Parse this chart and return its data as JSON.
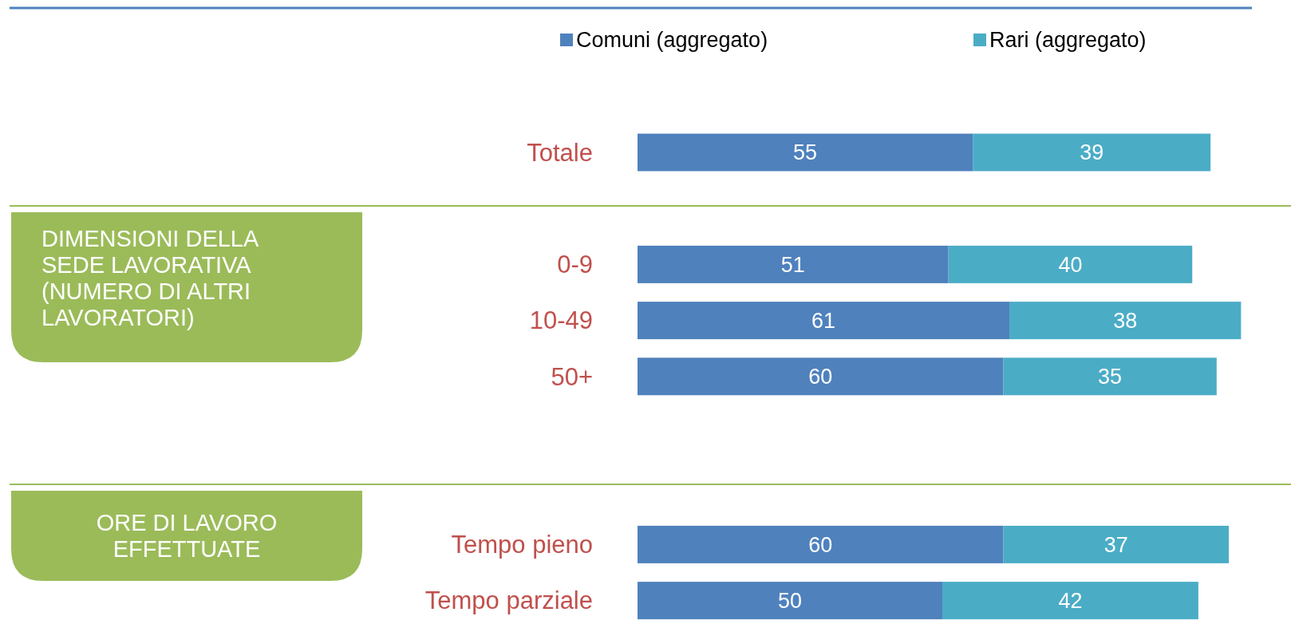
{
  "chart_data": {
    "type": "bar",
    "orientation": "horizontal",
    "stacked": true,
    "data_labels": true,
    "legend": "top",
    "categories": [
      "Totale",
      null,
      "0-9",
      "10-49",
      "50+",
      null,
      null,
      "Tempo pieno",
      "Tempo parziale"
    ],
    "series": [
      {
        "name": "Comuni (aggregato)",
        "color": "#4f81bd",
        "values": [
          55,
          null,
          51,
          61,
          60,
          null,
          null,
          60,
          50
        ]
      },
      {
        "name": "Rari (aggregato)",
        "color": "#4bacc6",
        "values": [
          39,
          null,
          40,
          38,
          35,
          null,
          null,
          37,
          42
        ]
      }
    ],
    "annotations": [
      "DIMENSIONI DELLA\nSEDE LAVORATIVA\n(NUMERO DI ALTRI\nLAVORATORI)",
      "ORE DI LAVORO\nEFFETTUATE"
    ]
  }
}
